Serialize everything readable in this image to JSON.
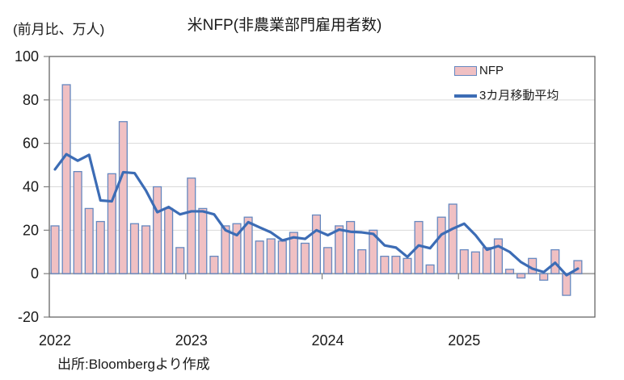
{
  "header": {
    "title": "米NFP(非農業部門雇用者数)",
    "unit_label": "(前月比、万人)"
  },
  "legend": {
    "bar_label": "NFP",
    "line_label": "3カ月移動平均"
  },
  "source": "出所:Bloombergより作成",
  "colors": {
    "bar_fill": "#F0C0C3",
    "bar_border": "#6688C0",
    "line": "#3C6CB5",
    "gridline": "#D9D9D9",
    "zero_axis": "#A6A6A6",
    "plot_border": "#595959",
    "tick": "#7F7F7F",
    "text": "#1a1a1a"
  },
  "chart_data": {
    "type": "bar",
    "title": "米NFP(非農業部門雇用者数)",
    "ylabel": "(前月比、万人)",
    "ylim": [
      -20,
      100
    ],
    "yticks": [
      100,
      80,
      60,
      40,
      20,
      0,
      -20
    ],
    "year_labels": [
      "2022",
      "2023",
      "2024",
      "2025"
    ],
    "grid": true,
    "legend_position": "top-right",
    "categories": [
      "2022-01",
      "2022-02",
      "2022-03",
      "2022-04",
      "2022-05",
      "2022-06",
      "2022-07",
      "2022-08",
      "2022-09",
      "2022-10",
      "2022-11",
      "2022-12",
      "2023-01",
      "2023-02",
      "2023-03",
      "2023-04",
      "2023-05",
      "2023-06",
      "2023-07",
      "2023-08",
      "2023-09",
      "2023-10",
      "2023-11",
      "2023-12",
      "2024-01",
      "2024-02",
      "2024-03",
      "2024-04",
      "2024-05",
      "2024-06",
      "2024-07",
      "2024-08",
      "2024-09",
      "2024-10",
      "2024-11",
      "2024-12",
      "2025-01",
      "2025-02",
      "2025-03",
      "2025-04",
      "2025-05",
      "2025-06",
      "2025-07",
      "2025-08",
      "2025-09",
      "2025-10",
      "2025-11"
    ],
    "series": [
      {
        "name": "NFP",
        "type": "bar",
        "values": [
          22,
          87,
          47,
          30,
          24,
          46,
          70,
          23,
          22,
          40,
          30,
          12,
          44,
          30,
          8,
          22,
          23,
          26,
          15,
          16,
          15,
          19,
          14,
          27,
          12,
          22,
          24,
          11,
          20,
          8,
          8,
          7,
          24,
          4,
          26,
          32,
          11,
          10,
          12,
          16,
          2,
          -2,
          7,
          -3,
          11,
          -10,
          6
        ]
      },
      {
        "name": "3カ月移動平均",
        "type": "line",
        "values": [
          48,
          55,
          52,
          54.7,
          33.7,
          33.3,
          46.7,
          46.3,
          38.3,
          28.3,
          30.7,
          27.3,
          28.7,
          28.7,
          27.3,
          20,
          17.7,
          23.7,
          21.3,
          19,
          15.3,
          16.7,
          16,
          20,
          17.7,
          20.3,
          19.3,
          19,
          18.3,
          13,
          12,
          7.7,
          13,
          11.7,
          18,
          20.7,
          23,
          17.7,
          11,
          12.7,
          10,
          5.3,
          2.3,
          0.7,
          5,
          -0.7,
          2.3
        ]
      }
    ]
  }
}
